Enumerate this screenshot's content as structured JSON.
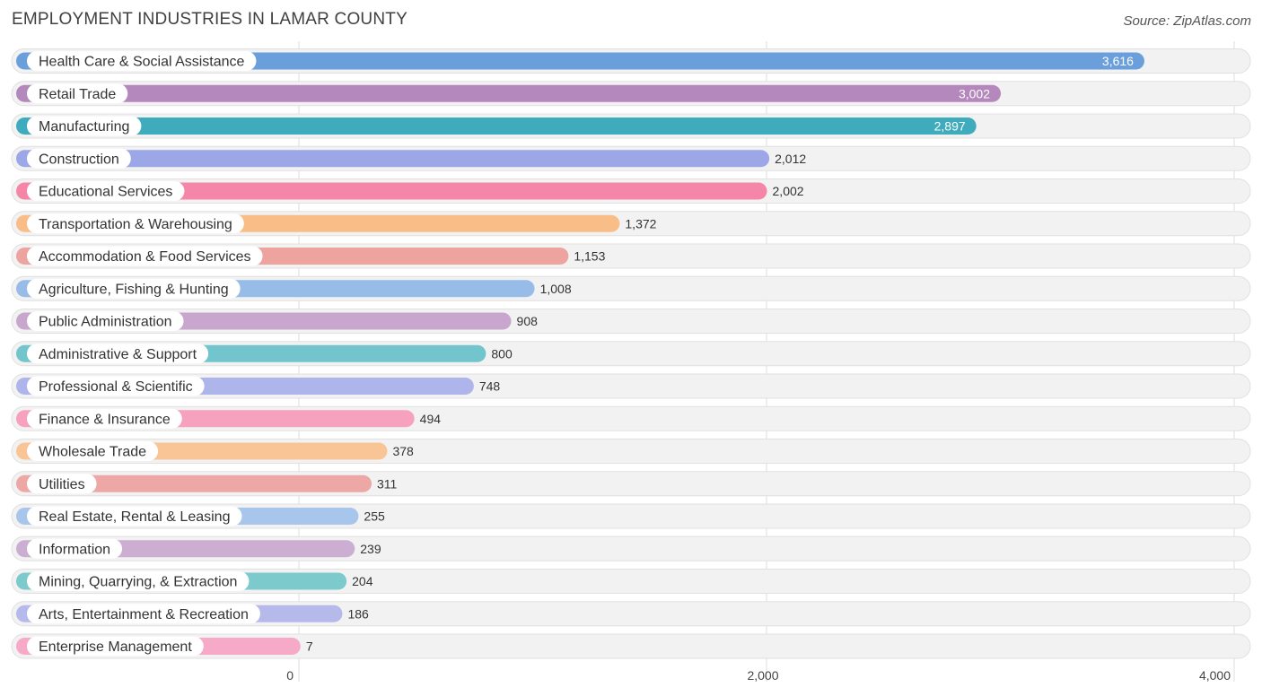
{
  "header": {
    "title": "EMPLOYMENT INDUSTRIES IN LAMAR COUNTY",
    "source": "Source: ZipAtlas.com"
  },
  "chart_data": {
    "type": "bar",
    "orientation": "horizontal",
    "title": "EMPLOYMENT INDUSTRIES IN LAMAR COUNTY",
    "xlabel": "",
    "ylabel": "",
    "xlim": [
      0,
      4000
    ],
    "ticks": [
      0,
      2000,
      4000
    ],
    "tick_labels": [
      "0",
      "2,000",
      "4,000"
    ],
    "grid": true,
    "categories": [
      "Health Care & Social Assistance",
      "Retail Trade",
      "Manufacturing",
      "Construction",
      "Educational Services",
      "Transportation & Warehousing",
      "Accommodation & Food Services",
      "Agriculture, Fishing & Hunting",
      "Public Administration",
      "Administrative & Support",
      "Professional & Scientific",
      "Finance & Insurance",
      "Wholesale Trade",
      "Utilities",
      "Real Estate, Rental & Leasing",
      "Information",
      "Mining, Quarrying, & Extraction",
      "Arts, Entertainment & Recreation",
      "Enterprise Management"
    ],
    "values": [
      3616,
      3002,
      2897,
      2012,
      2002,
      1372,
      1153,
      1008,
      908,
      800,
      748,
      494,
      378,
      311,
      255,
      239,
      204,
      186,
      7
    ],
    "value_labels": [
      "3,616",
      "3,002",
      "2,897",
      "2,012",
      "2,002",
      "1,372",
      "1,153",
      "1,008",
      "908",
      "800",
      "748",
      "494",
      "378",
      "311",
      "255",
      "239",
      "204",
      "186",
      "7"
    ],
    "colors": [
      "#6a9fdc",
      "#b487bd",
      "#3eacbc",
      "#9ba7e6",
      "#f686a8",
      "#f9be87",
      "#eda39e",
      "#98bce8",
      "#c8a6ce",
      "#72c5cc",
      "#adb5ea",
      "#f6a2bf",
      "#f9c596",
      "#eda8a6",
      "#a8c5eb",
      "#ccaed3",
      "#7dcacd",
      "#b6baea",
      "#f6aac7"
    ]
  }
}
